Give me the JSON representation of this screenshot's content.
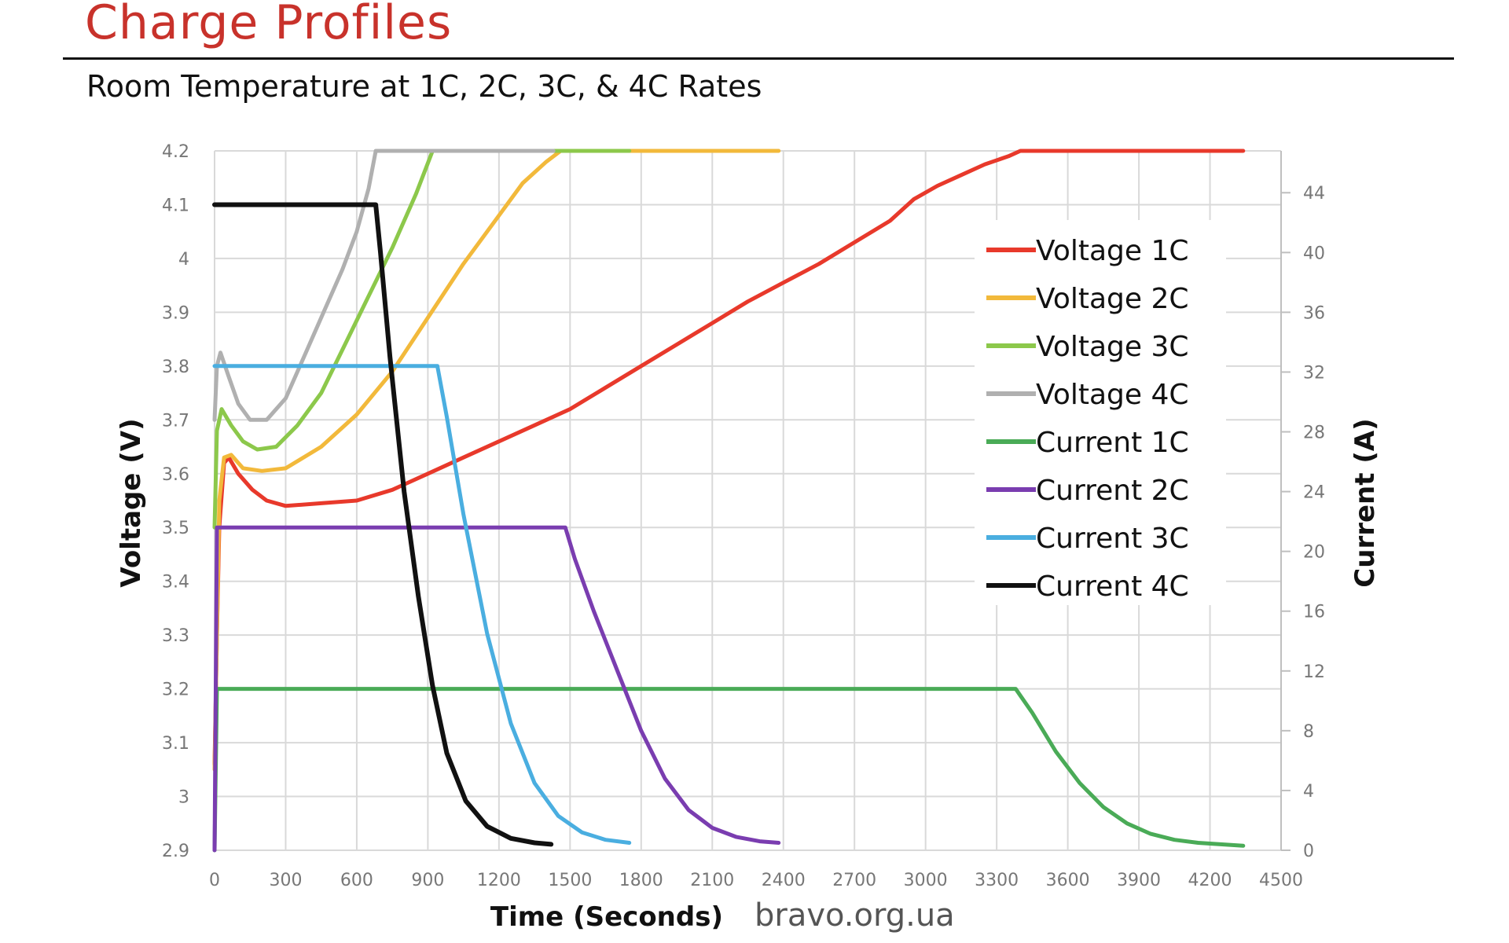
{
  "header": {
    "title": "Charge Profiles",
    "subtitle": "Room Temperature at 1C, 2C, 3C, & 4C Rates"
  },
  "watermark": "bravo.org.ua",
  "chart_data": {
    "type": "line",
    "title": "Charge Profiles",
    "subtitle": "Room Temperature at 1C, 2C, 3C, & 4C Rates",
    "xlabel": "Time (Seconds)",
    "ylabel": "Voltage (V)",
    "y2label": "Current (A)",
    "xlim": [
      0,
      4500
    ],
    "ylim": [
      2.9,
      4.2
    ],
    "y2lim": [
      0,
      46.8
    ],
    "xticks": [
      0,
      300,
      600,
      900,
      1200,
      1500,
      1800,
      2100,
      2400,
      2700,
      3000,
      3300,
      3600,
      3900,
      4200,
      4500
    ],
    "xtick_labels": [
      "0",
      "300",
      "600",
      "900",
      "1200",
      "1500",
      "1800",
      "2100",
      "2400",
      "2700",
      "3000",
      "3300",
      "3600",
      "3900",
      "4200",
      "4500"
    ],
    "yticks": [
      2.9,
      3.0,
      3.1,
      3.2,
      3.3,
      3.4,
      3.5,
      3.6,
      3.7,
      3.8,
      3.9,
      4.0,
      4.1,
      4.2
    ],
    "ytick_labels": [
      "2.9",
      "3",
      "3.1",
      "3.2",
      "3.3",
      "3.4",
      "3.5",
      "3.6",
      "3.7",
      "3.8",
      "3.9",
      "4",
      "4.1",
      "4.2"
    ],
    "y2ticks": [
      0,
      4,
      8,
      12,
      16,
      20,
      24,
      28,
      32,
      36,
      40,
      44
    ],
    "y2tick_labels": [
      "0",
      "4",
      "8",
      "12",
      "16",
      "20",
      "24",
      "28",
      "32",
      "36",
      "40",
      "44"
    ],
    "grid": true,
    "legend_position": "right",
    "series": [
      {
        "name": "Voltage 1C",
        "axis": "left",
        "color": "#e8392b",
        "points": [
          [
            0,
            3.06
          ],
          [
            10,
            3.3
          ],
          [
            20,
            3.5
          ],
          [
            40,
            3.62
          ],
          [
            60,
            3.63
          ],
          [
            100,
            3.6
          ],
          [
            160,
            3.57
          ],
          [
            220,
            3.55
          ],
          [
            300,
            3.54
          ],
          [
            450,
            3.545
          ],
          [
            600,
            3.55
          ],
          [
            750,
            3.57
          ],
          [
            900,
            3.6
          ],
          [
            1050,
            3.63
          ],
          [
            1200,
            3.66
          ],
          [
            1350,
            3.69
          ],
          [
            1500,
            3.72
          ],
          [
            1650,
            3.76
          ],
          [
            1800,
            3.8
          ],
          [
            1950,
            3.84
          ],
          [
            2100,
            3.88
          ],
          [
            2250,
            3.92
          ],
          [
            2400,
            3.955
          ],
          [
            2550,
            3.99
          ],
          [
            2700,
            4.03
          ],
          [
            2850,
            4.07
          ],
          [
            2950,
            4.11
          ],
          [
            3050,
            4.135
          ],
          [
            3150,
            4.155
          ],
          [
            3250,
            4.175
          ],
          [
            3350,
            4.19
          ],
          [
            3400,
            4.2
          ],
          [
            4340,
            4.2
          ]
        ]
      },
      {
        "name": "Voltage 2C",
        "axis": "left",
        "color": "#f2b93b",
        "points": [
          [
            0,
            3.05
          ],
          [
            10,
            3.3
          ],
          [
            20,
            3.55
          ],
          [
            40,
            3.63
          ],
          [
            70,
            3.635
          ],
          [
            120,
            3.61
          ],
          [
            200,
            3.605
          ],
          [
            300,
            3.61
          ],
          [
            450,
            3.65
          ],
          [
            600,
            3.71
          ],
          [
            750,
            3.79
          ],
          [
            900,
            3.89
          ],
          [
            1050,
            3.99
          ],
          [
            1200,
            4.08
          ],
          [
            1300,
            4.14
          ],
          [
            1400,
            4.18
          ],
          [
            1460,
            4.2
          ],
          [
            2380,
            4.2
          ]
        ]
      },
      {
        "name": "Voltage 3C",
        "axis": "left",
        "color": "#8cc84b",
        "points": [
          [
            0,
            3.5
          ],
          [
            10,
            3.68
          ],
          [
            30,
            3.72
          ],
          [
            70,
            3.69
          ],
          [
            120,
            3.66
          ],
          [
            180,
            3.645
          ],
          [
            260,
            3.65
          ],
          [
            350,
            3.69
          ],
          [
            450,
            3.75
          ],
          [
            550,
            3.84
          ],
          [
            650,
            3.93
          ],
          [
            750,
            4.02
          ],
          [
            850,
            4.12
          ],
          [
            920,
            4.2
          ],
          [
            1750,
            4.2
          ]
        ]
      },
      {
        "name": "Voltage 4C",
        "axis": "left",
        "color": "#b0b0b0",
        "points": [
          [
            0,
            3.7
          ],
          [
            10,
            3.8
          ],
          [
            25,
            3.825
          ],
          [
            60,
            3.78
          ],
          [
            100,
            3.73
          ],
          [
            150,
            3.7
          ],
          [
            220,
            3.7
          ],
          [
            300,
            3.74
          ],
          [
            380,
            3.82
          ],
          [
            460,
            3.9
          ],
          [
            540,
            3.98
          ],
          [
            600,
            4.05
          ],
          [
            650,
            4.13
          ],
          [
            680,
            4.2
          ],
          [
            1430,
            4.2
          ]
        ]
      },
      {
        "name": "Current 1C",
        "axis": "right",
        "color": "#4aab57",
        "points": [
          [
            0,
            0
          ],
          [
            10,
            10.8
          ],
          [
            3380,
            10.8
          ],
          [
            3450,
            9.2
          ],
          [
            3550,
            6.6
          ],
          [
            3650,
            4.5
          ],
          [
            3750,
            2.9
          ],
          [
            3850,
            1.8
          ],
          [
            3950,
            1.1
          ],
          [
            4050,
            0.7
          ],
          [
            4150,
            0.5
          ],
          [
            4340,
            0.3
          ]
        ]
      },
      {
        "name": "Current 2C",
        "axis": "right",
        "color": "#7a3db0",
        "points": [
          [
            0,
            0
          ],
          [
            10,
            21.6
          ],
          [
            1480,
            21.6
          ],
          [
            1520,
            19.5
          ],
          [
            1600,
            16.0
          ],
          [
            1700,
            12.0
          ],
          [
            1800,
            8.0
          ],
          [
            1900,
            4.8
          ],
          [
            2000,
            2.7
          ],
          [
            2100,
            1.5
          ],
          [
            2200,
            0.9
          ],
          [
            2300,
            0.6
          ],
          [
            2380,
            0.5
          ]
        ]
      },
      {
        "name": "Current 3C",
        "axis": "right",
        "color": "#4aaee0",
        "points": [
          [
            0,
            32.4
          ],
          [
            940,
            32.4
          ],
          [
            980,
            29
          ],
          [
            1050,
            22.5
          ],
          [
            1150,
            14.5
          ],
          [
            1250,
            8.5
          ],
          [
            1350,
            4.5
          ],
          [
            1450,
            2.3
          ],
          [
            1550,
            1.2
          ],
          [
            1650,
            0.7
          ],
          [
            1750,
            0.5
          ]
        ]
      },
      {
        "name": "Current 4C",
        "axis": "right",
        "color": "#111111",
        "points": [
          [
            0,
            43.2
          ],
          [
            680,
            43.2
          ],
          [
            700,
            40
          ],
          [
            740,
            33
          ],
          [
            800,
            24
          ],
          [
            860,
            17
          ],
          [
            920,
            11
          ],
          [
            980,
            6.5
          ],
          [
            1060,
            3.3
          ],
          [
            1150,
            1.6
          ],
          [
            1250,
            0.8
          ],
          [
            1350,
            0.5
          ],
          [
            1420,
            0.4
          ]
        ]
      }
    ]
  }
}
